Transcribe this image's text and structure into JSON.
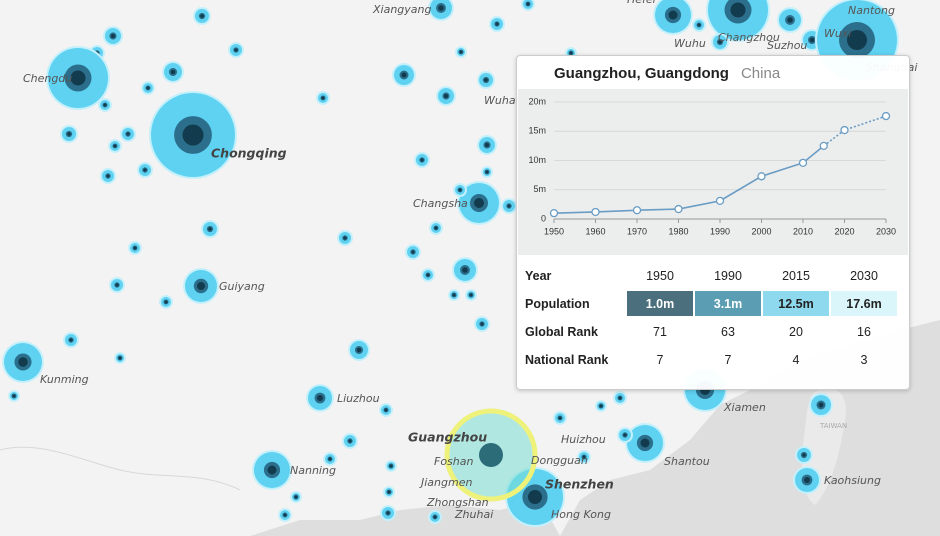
{
  "map": {
    "labels": [
      "Xiangyang",
      "Hefei",
      "Nantong",
      "Wuhu",
      "Changzhou",
      "Suzhou",
      "Wuxi",
      "Shanghai",
      "Chengdu",
      "Chongqing",
      "Wuhan",
      "Changsha",
      "Guiyang",
      "Kunming",
      "Liuzhou",
      "Nanning",
      "Guangzhou",
      "Foshan",
      "Jiangmen",
      "Zhongshan",
      "Zhuhai",
      "Dongguan",
      "Shenzhen",
      "Hong Kong",
      "Huizhou",
      "Shantou",
      "Xiamen",
      "TAIWAN",
      "Kaohsiung"
    ]
  },
  "tooltip": {
    "title": "Guangzhou, Guangdong",
    "country": "China",
    "table": {
      "header": [
        "Year",
        "1950",
        "1990",
        "2015",
        "2030"
      ],
      "rows": [
        {
          "label": "Population",
          "cells": [
            "1.0m",
            "3.1m",
            "12.5m",
            "17.6m"
          ],
          "colors": [
            "#4b6f7c",
            "#5b9db3",
            "#8fd9ef",
            "#daf6fb"
          ]
        },
        {
          "label": "Global Rank",
          "cells": [
            "71",
            "63",
            "20",
            "16"
          ]
        },
        {
          "label": "National Rank",
          "cells": [
            "7",
            "7",
            "4",
            "3"
          ]
        }
      ]
    }
  },
  "chart_data": {
    "type": "line",
    "x": [
      1950,
      1960,
      1970,
      1980,
      1990,
      2000,
      2010,
      2015,
      2020,
      2030
    ],
    "values": [
      1.0,
      1.2,
      1.5,
      1.7,
      3.1,
      7.3,
      9.6,
      12.5,
      15.2,
      17.6
    ],
    "dashed_from": 2015,
    "color": "#6a9cc4",
    "xlim": [
      1950,
      2030
    ],
    "ylim": [
      0,
      20
    ],
    "xticks": [
      1950,
      1960,
      1970,
      1980,
      1990,
      2000,
      2010,
      2020,
      2030
    ],
    "yticks": [
      0,
      {
        "value": 5,
        "label": "5m"
      },
      {
        "value": 10,
        "label": "10m"
      },
      {
        "value": 15,
        "label": "15m"
      },
      {
        "value": 20,
        "label": "20m"
      }
    ],
    "grid": true
  }
}
